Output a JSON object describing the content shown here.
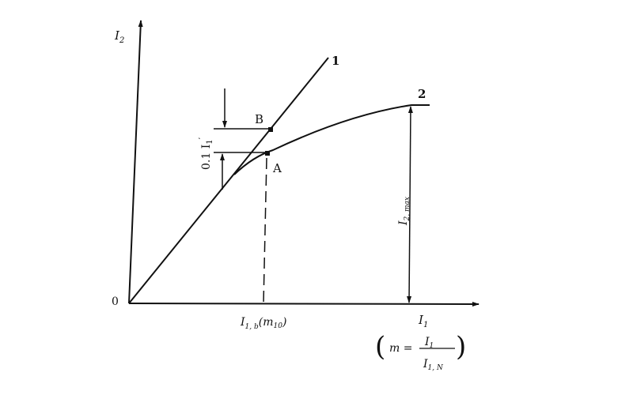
{
  "diagram": {
    "y_axis_label": "I",
    "y_axis_sub": "2",
    "x_axis_label": "I",
    "x_axis_sub": "1",
    "origin_label": "0",
    "curve_1_label": "1",
    "curve_2_label": "2",
    "point_b_label": "B",
    "point_a_label": "A",
    "delta_label": "0.1 I",
    "delta_sub": "1",
    "delta_prime": "′",
    "i2max_label": "I",
    "i2max_sub": "2, max",
    "x_mark_label": "I",
    "x_mark_sub": "1, b",
    "x_mark_paren": "(m",
    "x_mark_paren_sub": "10",
    "x_mark_close": ")",
    "formula_m": "m =",
    "formula_num": "I",
    "formula_num_sub": "1",
    "formula_den": "I",
    "formula_den_sub": "1, N"
  }
}
